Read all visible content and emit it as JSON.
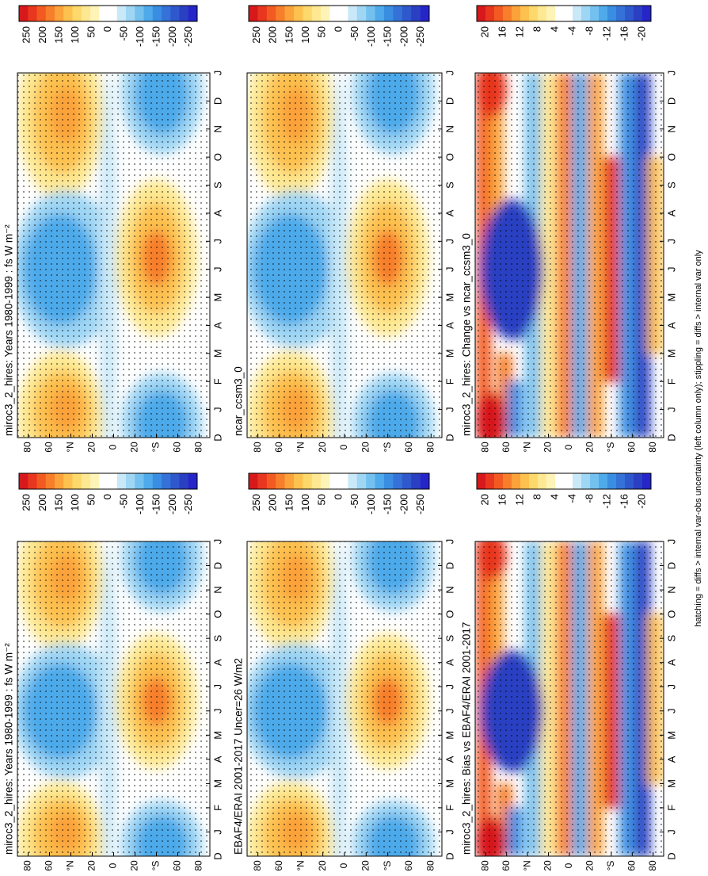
{
  "panels": [
    {
      "title": "miroc3_2_hires: Years 1980-1999 : fs W m⁻²",
      "kind": "clim",
      "months": [
        "D",
        "J",
        "F",
        "M",
        "A",
        "M",
        "J",
        "J",
        "A",
        "S",
        "O",
        "N",
        "D",
        "J"
      ],
      "latitudes": [
        "80",
        "60",
        "°N",
        "20",
        "0",
        "20",
        "°S",
        "60",
        "80"
      ],
      "colorbar": [
        "250",
        "200",
        "150",
        "100",
        "50",
        "0",
        "-50",
        "-100",
        "-150",
        "-200",
        "-250"
      ]
    },
    {
      "title": "miroc3_2_hires: Years 1980-1999 : fs W m⁻²",
      "kind": "clim",
      "months": [
        "D",
        "J",
        "F",
        "M",
        "A",
        "M",
        "J",
        "J",
        "A",
        "S",
        "O",
        "N",
        "D",
        "J"
      ],
      "latitudes": [
        "80",
        "60",
        "°N",
        "20",
        "0",
        "20",
        "°S",
        "60",
        "80"
      ],
      "colorbar": [
        "250",
        "200",
        "150",
        "100",
        "50",
        "0",
        "-50",
        "-100",
        "-150",
        "-200",
        "-250"
      ]
    },
    {
      "title": "EBAF4/ERAI 2001-2017 Uncer=26 W/m2",
      "kind": "clim",
      "months": [
        "D",
        "J",
        "F",
        "M",
        "A",
        "M",
        "J",
        "J",
        "A",
        "S",
        "O",
        "N",
        "D",
        "J"
      ],
      "latitudes": [
        "80",
        "60",
        "°N",
        "20",
        "0",
        "20",
        "°S",
        "60",
        "80"
      ],
      "colorbar": [
        "250",
        "200",
        "150",
        "100",
        "50",
        "0",
        "-50",
        "-100",
        "-150",
        "-200",
        "-250"
      ]
    },
    {
      "title": "ncar_ccsm3_0",
      "kind": "clim",
      "months": [
        "D",
        "J",
        "F",
        "M",
        "A",
        "M",
        "J",
        "J",
        "A",
        "S",
        "O",
        "N",
        "D",
        "J"
      ],
      "latitudes": [
        "80",
        "60",
        "°N",
        "20",
        "0",
        "20",
        "°S",
        "60",
        "80"
      ],
      "colorbar": [
        "250",
        "200",
        "150",
        "100",
        "50",
        "0",
        "-50",
        "-100",
        "-150",
        "-200",
        "-250"
      ]
    },
    {
      "title": "miroc3_2_hires: Bias vs EBAF4/ERAI 2001-2017",
      "kind": "diff",
      "months": [
        "D",
        "J",
        "F",
        "M",
        "A",
        "M",
        "J",
        "J",
        "A",
        "S",
        "O",
        "N",
        "D",
        "J"
      ],
      "latitudes": [
        "80",
        "60",
        "°N",
        "20",
        "0",
        "20",
        "°S",
        "60",
        "80"
      ],
      "colorbar": [
        "20",
        "16",
        "12",
        "8",
        "4",
        "-4",
        "-8",
        "-12",
        "-16",
        "-20"
      ]
    },
    {
      "title": "miroc3_2_hires: Change vs ncar_ccsm3_0",
      "kind": "diff",
      "months": [
        "D",
        "J",
        "F",
        "M",
        "A",
        "M",
        "J",
        "J",
        "A",
        "S",
        "O",
        "N",
        "D",
        "J"
      ],
      "latitudes": [
        "80",
        "60",
        "°N",
        "20",
        "0",
        "20",
        "°S",
        "60",
        "80"
      ],
      "colorbar": [
        "20",
        "16",
        "12",
        "8",
        "4",
        "-4",
        "-8",
        "-12",
        "-16",
        "-20"
      ]
    }
  ],
  "footnote": "hatching = diffs > internal var-obs uncertainty (left column only); stippling = diffs > internal var only"
}
